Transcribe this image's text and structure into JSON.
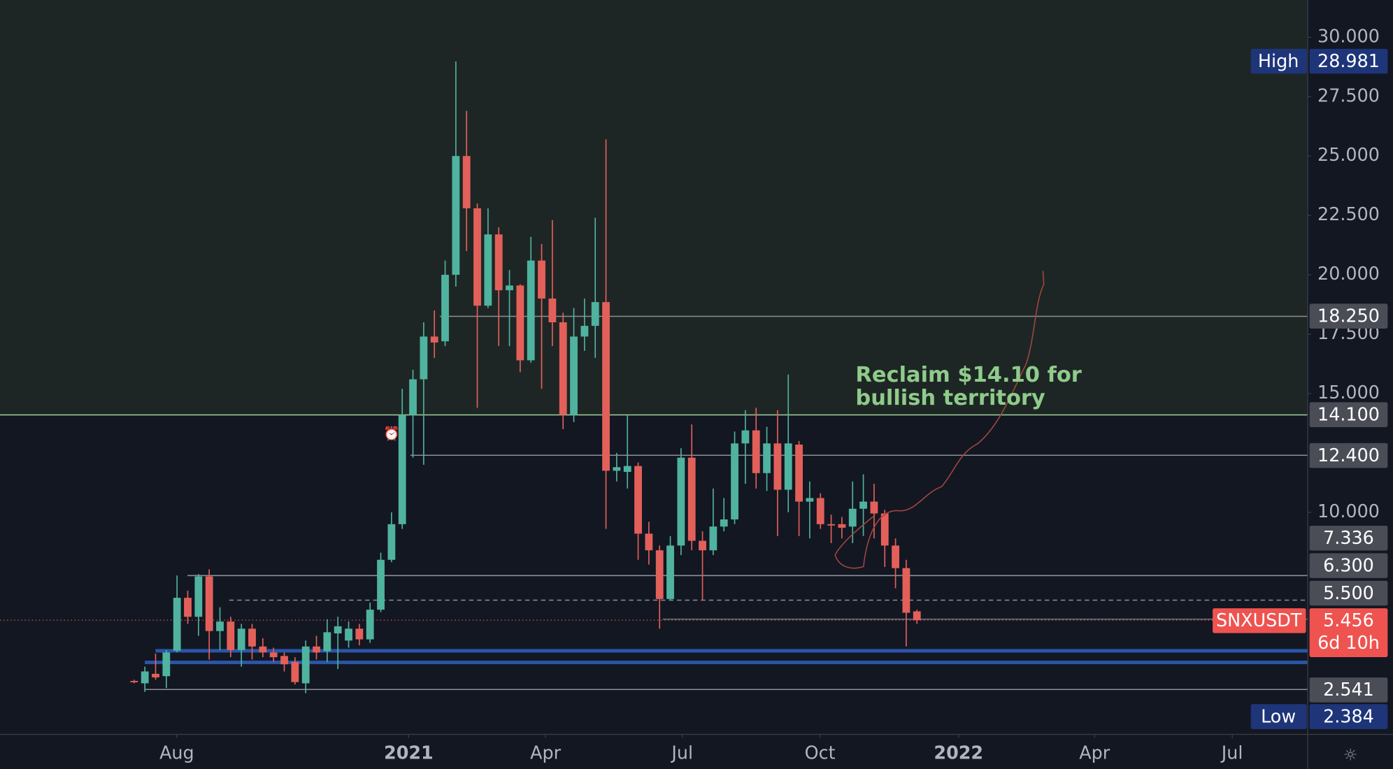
{
  "chart_data": {
    "type": "candlestick",
    "open": [
      2.9,
      2.8,
      3.2,
      3.1,
      4.17,
      6.4,
      5.6,
      7.3,
      5.0,
      5.4,
      4.2,
      5.1,
      4.35,
      4.1,
      3.95,
      3.7,
      2.8,
      4.35,
      4.15,
      4.9,
      4.6,
      5.1,
      4.65,
      5.9,
      8.0,
      9.5,
      14.1,
      15.6,
      17.4,
      17.2,
      20.0,
      25.0,
      22.8,
      18.7,
      21.7,
      19.35,
      19.55,
      16.4,
      20.6,
      19.0,
      18.0,
      14.1,
      17.4,
      17.85,
      18.85,
      11.75,
      11.7,
      11.95,
      9.1,
      8.4,
      6.35,
      8.6,
      12.3,
      8.8,
      8.4,
      9.4,
      9.7,
      12.9,
      13.45,
      11.65,
      12.9,
      10.95,
      12.85,
      10.45,
      10.6,
      9.5,
      9.5,
      9.4,
      10.15,
      10.45,
      9.95,
      8.6,
      7.65,
      5.83
    ],
    "high": [
      2.95,
      3.5,
      4.05,
      4.2,
      7.34,
      6.7,
      7.4,
      7.6,
      6.0,
      5.6,
      5.3,
      5.3,
      4.7,
      4.3,
      4.1,
      3.9,
      4.6,
      4.8,
      5.5,
      5.6,
      5.4,
      5.3,
      6.2,
      8.3,
      10.0,
      15.2,
      16.0,
      18.0,
      18.5,
      20.6,
      28.981,
      26.9,
      23.0,
      22.8,
      22.0,
      20.2,
      19.6,
      21.6,
      21.3,
      22.3,
      18.4,
      18.6,
      19.0,
      22.4,
      25.7,
      12.5,
      14.1,
      12.1,
      9.6,
      8.6,
      9.0,
      12.7,
      13.7,
      9.2,
      11.0,
      10.6,
      13.4,
      14.3,
      14.4,
      13.6,
      14.3,
      15.8,
      13.0,
      11.3,
      10.8,
      9.9,
      9.8,
      11.3,
      11.6,
      11.2,
      10.1,
      8.9,
      8.0,
      5.9
    ],
    "low": [
      2.8,
      2.44,
      2.95,
      2.6,
      4.1,
      5.3,
      4.8,
      3.8,
      4.2,
      3.9,
      3.5,
      3.8,
      3.9,
      3.7,
      3.3,
      2.75,
      2.384,
      3.8,
      3.7,
      3.4,
      4.3,
      4.4,
      4.5,
      5.8,
      7.9,
      9.3,
      12.3,
      12.0,
      16.5,
      17.0,
      19.5,
      21.0,
      14.4,
      18.6,
      17.0,
      17.0,
      15.9,
      16.3,
      15.2,
      17.0,
      13.5,
      13.8,
      16.8,
      16.5,
      9.3,
      11.3,
      11.0,
      8.0,
      7.8,
      5.1,
      6.3,
      8.2,
      8.4,
      6.3,
      8.2,
      9.2,
      9.5,
      11.2,
      11.0,
      10.9,
      9.0,
      10.0,
      9.0,
      8.9,
      9.3,
      8.7,
      8.9,
      8.7,
      9.0,
      8.9,
      7.7,
      6.8,
      4.35,
      5.3
    ],
    "close": [
      2.85,
      3.3,
      3.05,
      4.1,
      6.4,
      5.6,
      7.3,
      5.0,
      5.4,
      4.2,
      5.1,
      4.35,
      4.1,
      3.9,
      3.6,
      2.85,
      4.35,
      4.1,
      4.95,
      5.2,
      5.1,
      4.65,
      5.9,
      8.0,
      9.5,
      14.1,
      15.6,
      17.4,
      17.15,
      20.0,
      25.0,
      22.8,
      18.7,
      21.7,
      19.35,
      19.55,
      16.4,
      20.6,
      19.0,
      18.0,
      14.1,
      17.4,
      17.85,
      18.85,
      11.75,
      11.9,
      11.95,
      9.1,
      8.4,
      6.35,
      8.6,
      12.3,
      8.8,
      8.4,
      9.4,
      9.7,
      12.9,
      13.45,
      11.65,
      12.9,
      10.95,
      12.9,
      10.45,
      10.6,
      9.5,
      9.45,
      9.35,
      10.15,
      10.45,
      9.95,
      8.6,
      7.65,
      5.77,
      5.456
    ],
    "xlim": [
      -12.51,
      109.44
    ],
    "xticks": [
      {
        "value": 3.98,
        "label": "Aug"
      },
      {
        "value": 25.6,
        "label": "2021"
      },
      {
        "value": 38.36,
        "label": "Apr"
      },
      {
        "value": 51.12,
        "label": "Jul"
      },
      {
        "value": 63.96,
        "label": "Oct"
      },
      {
        "value": 76.88,
        "label": "2022"
      },
      {
        "value": 89.56,
        "label": "Apr"
      },
      {
        "value": 102.4,
        "label": "Jul"
      }
    ],
    "ylim": [
      0.65,
      31.57
    ],
    "yticks": [
      {
        "value": 10,
        "label": "10.000"
      },
      {
        "value": 15,
        "label": "15.000"
      },
      {
        "value": 17.5,
        "label": "17.500"
      },
      {
        "value": 20,
        "label": "20.000"
      },
      {
        "value": 22.5,
        "label": "22.500"
      },
      {
        "value": 25,
        "label": "25.000"
      },
      {
        "value": 27.5,
        "label": "27.500"
      },
      {
        "value": 30,
        "label": "30.000"
      }
    ],
    "levels": [
      {
        "value": 18.25,
        "label": "18.250"
      },
      {
        "value": 14.1,
        "label": "14.100"
      },
      {
        "value": 12.4,
        "label": "12.400"
      },
      7.336,
      {
        "value": 6.3,
        "label": "6.300"
      },
      {
        "value": 5.5,
        "label": "5.500"
      },
      2.541
    ],
    "level_colors": [
      "#8c8f96",
      "#9fd39c",
      "#8c8f96",
      "#8c8f96",
      "#8c8f96",
      "#6b6e76",
      "#8c8f96"
    ],
    "level_dashed": [
      false,
      false,
      false,
      false,
      true,
      false,
      false
    ],
    "support_lines": [
      4.17,
      3.68
    ],
    "support_color": "#2a55a8",
    "extremes": [
      {
        "label": "High",
        "value": 28.981
      },
      {
        "label": "Low",
        "value": 2.384
      }
    ],
    "extreme_color": "#1e3579",
    "last_price": {
      "symbol": "SNXUSDT",
      "value": 5.456,
      "countdown": "6d 10h",
      "color": "#ef5350"
    },
    "annotation": {
      "lines": [
        "Reclaim $14.10 for",
        "bullish territory"
      ],
      "color": "#8fcb8a"
    },
    "up_color": "#4fb39f",
    "down_color": "#e3605a",
    "zone_color": "#1e2625",
    "background": "#131722"
  }
}
